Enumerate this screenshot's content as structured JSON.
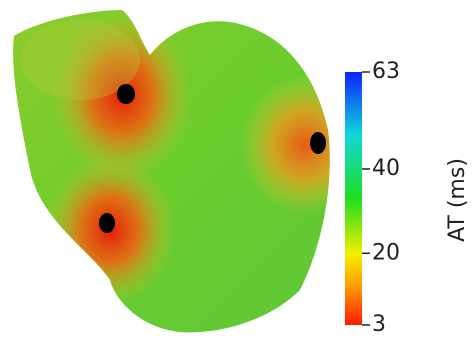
{
  "colorbar": {
    "label": "AT (ms)",
    "lim": [
      3,
      63
    ],
    "ticks": [
      3,
      20,
      40,
      63
    ]
  }
}
